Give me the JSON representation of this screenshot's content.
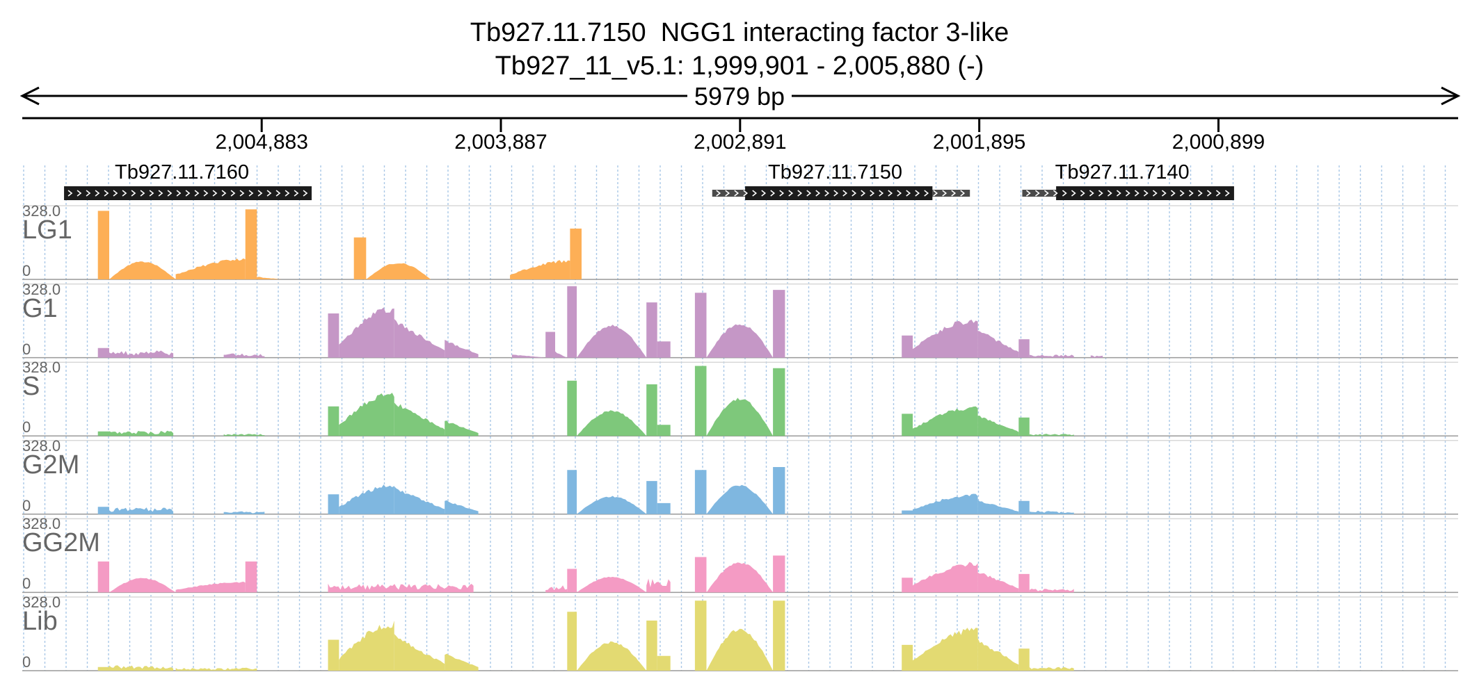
{
  "header": {
    "title_line1": "Tb927.11.7150  NGG1 interacting factor 3-like",
    "title_line2": "Tb927_11_v5.1: 1,999,901 - 2,005,880 (-)"
  },
  "ruler": {
    "span_label": "5979 bp",
    "ticks": [
      {
        "label": "2,004,883",
        "coord": 2004883
      },
      {
        "label": "2,003,887",
        "coord": 2003887
      },
      {
        "label": "2,002,891",
        "coord": 2002891
      },
      {
        "label": "2,001,895",
        "coord": 2001895
      },
      {
        "label": "2,000,899",
        "coord": 2000899
      }
    ],
    "start": 1999901,
    "end": 2005880,
    "strand": "-"
  },
  "genes": [
    {
      "name": "Tb927.11.7160",
      "start": 2004675,
      "end": 2005706,
      "cds_start": 2004675,
      "cds_end": 2005706,
      "strand": "-"
    },
    {
      "name": "Tb927.11.7150",
      "start": 2001934,
      "end": 2003007,
      "cds_start": 2002090,
      "cds_end": 2002870,
      "strand": "-"
    },
    {
      "name": "Tb927.11.7140",
      "start": 2000834,
      "end": 2001716,
      "cds_start": 2000834,
      "cds_end": 2001575,
      "strand": "-"
    }
  ],
  "tracks": [
    {
      "name": "LG1",
      "max_label": "328.0",
      "min_label": "0",
      "color": "#fdaf56",
      "segments": [
        {
          "a": 5664,
          "b": 5617,
          "shape": "peak",
          "h": 0.93
        },
        {
          "a": 5617,
          "b": 5340,
          "shape": "bump",
          "h": 0.25
        },
        {
          "a": 5340,
          "b": 5050,
          "shape": "ramp_up",
          "h": 0.29
        },
        {
          "a": 5050,
          "b": 5002,
          "shape": "peak",
          "h": 0.95
        },
        {
          "a": 5002,
          "b": 4900,
          "shape": "tail",
          "h": 0.04
        },
        {
          "a": 4598,
          "b": 4547,
          "shape": "peak",
          "h": 0.57
        },
        {
          "a": 4547,
          "b": 4278,
          "shape": "bump",
          "h": 0.23
        },
        {
          "a": 3948,
          "b": 3698,
          "shape": "ramp_up",
          "h": 0.27
        },
        {
          "a": 3698,
          "b": 3650,
          "shape": "peak",
          "h": 0.69
        }
      ]
    },
    {
      "name": "G1",
      "max_label": "328.0",
      "min_label": "0",
      "color": "#c597c6",
      "segments": [
        {
          "a": 5664,
          "b": 5617,
          "shape": "peak",
          "h": 0.13
        },
        {
          "a": 5617,
          "b": 5350,
          "shape": "noise",
          "h": 0.1
        },
        {
          "a": 5140,
          "b": 4970,
          "shape": "noise",
          "h": 0.06
        },
        {
          "a": 4706,
          "b": 4660,
          "shape": "peak",
          "h": 0.6
        },
        {
          "a": 4660,
          "b": 4430,
          "shape": "ramp_up",
          "h": 0.72
        },
        {
          "a": 4430,
          "b": 4220,
          "shape": "ramp_down",
          "h": 0.54
        },
        {
          "a": 4220,
          "b": 4080,
          "shape": "ramp_down",
          "h": 0.25
        },
        {
          "a": 3940,
          "b": 3800,
          "shape": "tail",
          "h": 0.05
        },
        {
          "a": 3800,
          "b": 3760,
          "shape": "peak",
          "h": 0.35
        },
        {
          "a": 3760,
          "b": 3710,
          "shape": "tail",
          "h": 0.1
        },
        {
          "a": 3710,
          "b": 3670,
          "shape": "peak",
          "h": 0.97
        },
        {
          "a": 3670,
          "b": 3380,
          "shape": "bump",
          "h": 0.45
        },
        {
          "a": 3380,
          "b": 3335,
          "shape": "peak",
          "h": 0.75
        },
        {
          "a": 3335,
          "b": 3280,
          "shape": "peak",
          "h": 0.22
        },
        {
          "a": 3178,
          "b": 3130,
          "shape": "peak",
          "h": 0.88
        },
        {
          "a": 3130,
          "b": 2853,
          "shape": "bump",
          "h": 0.47
        },
        {
          "a": 2853,
          "b": 2803,
          "shape": "peak",
          "h": 0.92
        },
        {
          "a": 2317,
          "b": 2271,
          "shape": "peak",
          "h": 0.3
        },
        {
          "a": 2271,
          "b": 2000,
          "shape": "ramp_up",
          "h": 0.55
        },
        {
          "a": 2000,
          "b": 1830,
          "shape": "ramp_down",
          "h": 0.4
        },
        {
          "a": 1830,
          "b": 1785,
          "shape": "peak",
          "h": 0.25
        },
        {
          "a": 1785,
          "b": 1600,
          "shape": "noise",
          "h": 0.04
        },
        {
          "a": 1530,
          "b": 1480,
          "shape": "noise",
          "h": 0.03
        }
      ]
    },
    {
      "name": "S",
      "max_label": "328.0",
      "min_label": "0",
      "color": "#7ec87b",
      "segments": [
        {
          "a": 5664,
          "b": 5617,
          "shape": "peak",
          "h": 0.06
        },
        {
          "a": 5617,
          "b": 5350,
          "shape": "noise",
          "h": 0.07
        },
        {
          "a": 5140,
          "b": 4970,
          "shape": "noise",
          "h": 0.03
        },
        {
          "a": 4706,
          "b": 4660,
          "shape": "peak",
          "h": 0.4
        },
        {
          "a": 4660,
          "b": 4430,
          "shape": "ramp_up",
          "h": 0.62
        },
        {
          "a": 4430,
          "b": 4220,
          "shape": "ramp_down",
          "h": 0.48
        },
        {
          "a": 4220,
          "b": 4080,
          "shape": "ramp_down",
          "h": 0.22
        },
        {
          "a": 3710,
          "b": 3670,
          "shape": "peak",
          "h": 0.75
        },
        {
          "a": 3670,
          "b": 3380,
          "shape": "bump",
          "h": 0.35
        },
        {
          "a": 3380,
          "b": 3335,
          "shape": "peak",
          "h": 0.7
        },
        {
          "a": 3335,
          "b": 3280,
          "shape": "peak",
          "h": 0.15
        },
        {
          "a": 3178,
          "b": 3130,
          "shape": "peak",
          "h": 0.95
        },
        {
          "a": 3130,
          "b": 2853,
          "shape": "bump",
          "h": 0.52
        },
        {
          "a": 2853,
          "b": 2803,
          "shape": "peak",
          "h": 0.92
        },
        {
          "a": 2317,
          "b": 2271,
          "shape": "peak",
          "h": 0.3
        },
        {
          "a": 2271,
          "b": 2000,
          "shape": "ramp_up",
          "h": 0.42
        },
        {
          "a": 2000,
          "b": 1830,
          "shape": "ramp_down",
          "h": 0.3
        },
        {
          "a": 1830,
          "b": 1785,
          "shape": "peak",
          "h": 0.25
        },
        {
          "a": 1785,
          "b": 1600,
          "shape": "noise",
          "h": 0.03
        }
      ]
    },
    {
      "name": "G2M",
      "max_label": "328.0",
      "min_label": "0",
      "color": "#7fb7e0",
      "segments": [
        {
          "a": 5664,
          "b": 5617,
          "shape": "peak",
          "h": 0.1
        },
        {
          "a": 5617,
          "b": 5350,
          "shape": "noise",
          "h": 0.1
        },
        {
          "a": 5140,
          "b": 4970,
          "shape": "noise",
          "h": 0.04
        },
        {
          "a": 4706,
          "b": 4660,
          "shape": "peak",
          "h": 0.27
        },
        {
          "a": 4660,
          "b": 4430,
          "shape": "ramp_up",
          "h": 0.42
        },
        {
          "a": 4430,
          "b": 4220,
          "shape": "ramp_down",
          "h": 0.38
        },
        {
          "a": 4220,
          "b": 4080,
          "shape": "ramp_down",
          "h": 0.2
        },
        {
          "a": 3710,
          "b": 3670,
          "shape": "peak",
          "h": 0.6
        },
        {
          "a": 3670,
          "b": 3380,
          "shape": "bump",
          "h": 0.25
        },
        {
          "a": 3380,
          "b": 3335,
          "shape": "peak",
          "h": 0.45
        },
        {
          "a": 3335,
          "b": 3280,
          "shape": "peak",
          "h": 0.15
        },
        {
          "a": 3178,
          "b": 3130,
          "shape": "peak",
          "h": 0.6
        },
        {
          "a": 3130,
          "b": 2853,
          "shape": "bump",
          "h": 0.4
        },
        {
          "a": 2853,
          "b": 2803,
          "shape": "peak",
          "h": 0.64
        },
        {
          "a": 2317,
          "b": 2271,
          "shape": "peak",
          "h": 0.05
        },
        {
          "a": 2271,
          "b": 2000,
          "shape": "ramp_up",
          "h": 0.28
        },
        {
          "a": 2000,
          "b": 1830,
          "shape": "ramp_down",
          "h": 0.2
        },
        {
          "a": 1830,
          "b": 1785,
          "shape": "peak",
          "h": 0.18
        },
        {
          "a": 1785,
          "b": 1600,
          "shape": "noise",
          "h": 0.05
        }
      ]
    },
    {
      "name": "GG2M",
      "max_label": "328.0",
      "min_label": "0",
      "color": "#f49bc4",
      "segments": [
        {
          "a": 5664,
          "b": 5617,
          "shape": "peak",
          "h": 0.42
        },
        {
          "a": 5617,
          "b": 5340,
          "shape": "bump",
          "h": 0.2
        },
        {
          "a": 5340,
          "b": 5050,
          "shape": "ramp_up",
          "h": 0.15
        },
        {
          "a": 5050,
          "b": 5002,
          "shape": "peak",
          "h": 0.42
        },
        {
          "a": 4706,
          "b": 4100,
          "shape": "noise",
          "h": 0.12
        },
        {
          "a": 3800,
          "b": 3710,
          "shape": "noise",
          "h": 0.1
        },
        {
          "a": 3710,
          "b": 3670,
          "shape": "peak",
          "h": 0.32
        },
        {
          "a": 3670,
          "b": 3380,
          "shape": "bump",
          "h": 0.22
        },
        {
          "a": 3380,
          "b": 3280,
          "shape": "noise",
          "h": 0.2
        },
        {
          "a": 3178,
          "b": 3130,
          "shape": "peak",
          "h": 0.48
        },
        {
          "a": 3130,
          "b": 2853,
          "shape": "bump",
          "h": 0.42
        },
        {
          "a": 2853,
          "b": 2803,
          "shape": "peak",
          "h": 0.5
        },
        {
          "a": 2317,
          "b": 2271,
          "shape": "peak",
          "h": 0.2
        },
        {
          "a": 2271,
          "b": 2000,
          "shape": "ramp_up",
          "h": 0.42
        },
        {
          "a": 2000,
          "b": 1830,
          "shape": "ramp_down",
          "h": 0.3
        },
        {
          "a": 1830,
          "b": 1785,
          "shape": "peak",
          "h": 0.25
        },
        {
          "a": 1785,
          "b": 1600,
          "shape": "noise",
          "h": 0.05
        }
      ]
    },
    {
      "name": "Lib",
      "max_label": "328.0",
      "min_label": "0",
      "color": "#e3da72",
      "segments": [
        {
          "a": 5664,
          "b": 5617,
          "shape": "peak",
          "h": 0.05
        },
        {
          "a": 5617,
          "b": 5350,
          "shape": "noise",
          "h": 0.08
        },
        {
          "a": 5340,
          "b": 5002,
          "shape": "noise",
          "h": 0.04
        },
        {
          "a": 4706,
          "b": 4660,
          "shape": "peak",
          "h": 0.42
        },
        {
          "a": 4660,
          "b": 4430,
          "shape": "ramp_up",
          "h": 0.68
        },
        {
          "a": 4430,
          "b": 4220,
          "shape": "ramp_down",
          "h": 0.5
        },
        {
          "a": 4220,
          "b": 4080,
          "shape": "ramp_down",
          "h": 0.25
        },
        {
          "a": 3710,
          "b": 3670,
          "shape": "peak",
          "h": 0.8
        },
        {
          "a": 3670,
          "b": 3380,
          "shape": "bump",
          "h": 0.4
        },
        {
          "a": 3380,
          "b": 3335,
          "shape": "peak",
          "h": 0.68
        },
        {
          "a": 3335,
          "b": 3280,
          "shape": "peak",
          "h": 0.2
        },
        {
          "a": 3178,
          "b": 3130,
          "shape": "peak",
          "h": 0.95
        },
        {
          "a": 3130,
          "b": 2853,
          "shape": "bump",
          "h": 0.58
        },
        {
          "a": 2853,
          "b": 2803,
          "shape": "peak",
          "h": 0.95
        },
        {
          "a": 2317,
          "b": 2271,
          "shape": "peak",
          "h": 0.35
        },
        {
          "a": 2271,
          "b": 2000,
          "shape": "ramp_up",
          "h": 0.6
        },
        {
          "a": 2000,
          "b": 1830,
          "shape": "ramp_down",
          "h": 0.45
        },
        {
          "a": 1830,
          "b": 1785,
          "shape": "peak",
          "h": 0.3
        },
        {
          "a": 1785,
          "b": 1600,
          "shape": "noise",
          "h": 0.05
        }
      ]
    }
  ]
}
